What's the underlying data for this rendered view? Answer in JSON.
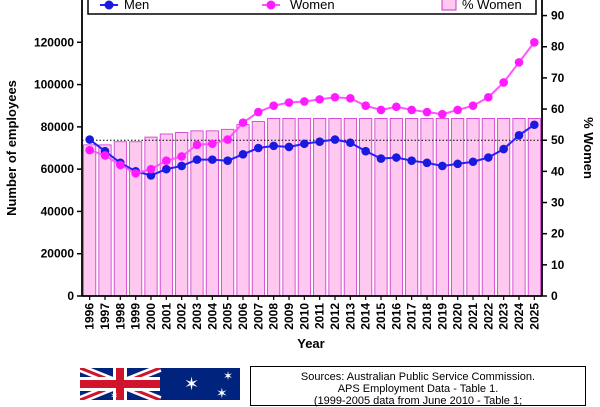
{
  "chart_data": {
    "type": "bar+line",
    "xlabel": "Year",
    "ylabel_left": "Number of employees",
    "ylabel_right": "% Women",
    "ylim_left": [
      0,
      140000
    ],
    "ylim_right": [
      0,
      95
    ],
    "yticks_left": [
      0,
      20000,
      40000,
      60000,
      80000,
      100000,
      120000
    ],
    "yticks_right": [
      0,
      10,
      20,
      30,
      40,
      50,
      60,
      70,
      80,
      90
    ],
    "reference_line": {
      "axis": "right",
      "value": 50,
      "style": "dotted"
    },
    "legend": {
      "placement": "top",
      "entries": [
        "Men",
        "Women",
        "% Women"
      ]
    },
    "categories": [
      "1996",
      "1997",
      "1998",
      "1999",
      "2000",
      "2001",
      "2002",
      "2003",
      "2004",
      "2005",
      "2006",
      "2007",
      "2008",
      "2009",
      "2010",
      "2011",
      "2012",
      "2013",
      "2014",
      "2015",
      "2016",
      "2017",
      "2018",
      "2019",
      "2020",
      "2021",
      "2022",
      "2023",
      "2024",
      "2025"
    ],
    "series": [
      {
        "name": "Men",
        "axis": "left",
        "kind": "line",
        "values": [
          74000,
          68500,
          63000,
          59000,
          57000,
          60000,
          61500,
          64500,
          64500,
          64000,
          67000,
          70000,
          71000,
          70500,
          72000,
          73000,
          74000,
          72500,
          68500,
          65000,
          65500,
          64000,
          63000,
          61500,
          62500,
          63500,
          65500,
          69500,
          76000,
          81000
        ]
      },
      {
        "name": "Women",
        "axis": "left",
        "kind": "line",
        "values": [
          69000,
          66500,
          62000,
          58000,
          60000,
          64000,
          66000,
          71500,
          72000,
          74000,
          82000,
          87000,
          90000,
          91500,
          92000,
          93000,
          94000,
          93500,
          90000,
          88000,
          89500,
          88000,
          87000,
          86000,
          88000,
          90000,
          94000,
          101000,
          110500,
          120000
        ]
      },
      {
        "name": "% Women",
        "axis": "right",
        "kind": "bar",
        "values": [
          48.5,
          48.5,
          49.5,
          49.5,
          51,
          52,
          52.5,
          53,
          53,
          53.5,
          55,
          56,
          57,
          57,
          57,
          57,
          57,
          57,
          57,
          57,
          57,
          57,
          57,
          57,
          57,
          57,
          57,
          57,
          57,
          57
        ]
      }
    ]
  },
  "source": {
    "line1": "Sources: Australian Public Service Commission.",
    "line2": "APS Employment Data - Table 1.",
    "line3": "(1999-2005 data from June 2010 - Table 1;"
  },
  "flag": {
    "description_icon": "australian-flag-icon",
    "blue": "#00247d",
    "red": "#cf142b"
  },
  "colors": {
    "men": "#1a1adf",
    "women": "#ff1aff",
    "bar_fill": "#ffc8f0",
    "bar_edge": "#cc33cc",
    "men_line": "#2222ff",
    "women_line": "#ff55ff"
  }
}
